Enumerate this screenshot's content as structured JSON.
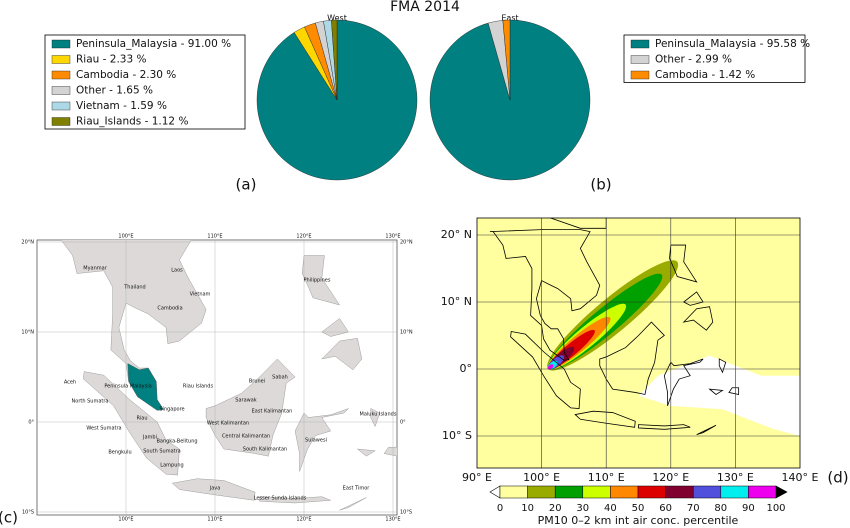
{
  "title": "FMA 2014",
  "chart_data": [
    {
      "type": "pie",
      "title": "West",
      "panel_label": "(a)",
      "legend": "left",
      "categories": [
        "Peninsula_Malaysia - 91.00 %",
        "Riau - 2.33 %",
        "Cambodia - 2.30 %",
        "Other - 1.65 %",
        "Vietnam - 1.59 %",
        "Riau_Islands - 1.12 %"
      ],
      "values": [
        91.0,
        2.33,
        2.3,
        1.65,
        1.59,
        1.12
      ],
      "colors": [
        "#008080",
        "#ffd700",
        "#ff8c00",
        "#d3d3d3",
        "#add8e6",
        "#808000"
      ]
    },
    {
      "type": "pie",
      "title": "East",
      "panel_label": "(b)",
      "legend": "right",
      "categories": [
        "Peninsula_Malaysia - 95.58 %",
        "Other - 2.99 %",
        "Cambodia - 1.42 %"
      ],
      "values": [
        95.58,
        2.99,
        1.42
      ],
      "colors": [
        "#008080",
        "#d3d3d3",
        "#ff8c00"
      ]
    }
  ],
  "map_c": {
    "panel_label": "(c)",
    "lon_labels": [
      "100°E",
      "110°E",
      "120°E",
      "130°E"
    ],
    "lat_labels": [
      "20°N",
      "10°N",
      "0°",
      "10°S"
    ],
    "place_labels": [
      "Myanmar",
      "Laos",
      "Thailand",
      "Vietnam",
      "Cambodia",
      "Philippines",
      "Peninsula Malaysia",
      "Riau Islands",
      "Brunei",
      "Sabah",
      "Sarawak",
      "East Kalimantan",
      "Aceh",
      "North Sumatra",
      "Riau",
      "Singapore",
      "West Sumatra",
      "Jambi",
      "Bangka-Belitung",
      "Bengkulu",
      "South Sumatra",
      "West Kalimantan",
      "Central Kalimantan",
      "South Kalimantan",
      "Lampung",
      "Sulawesi",
      "Maluku Islands",
      "Java",
      "Lesser Sunda Islands",
      "East Timor"
    ]
  },
  "map_d": {
    "panel_label": "(d)",
    "lat_labels": [
      "20° N",
      "10° N",
      "0°",
      "10° S"
    ],
    "lon_labels": [
      "90° E",
      "100° E",
      "110° E",
      "120° E",
      "130° E",
      "140° E"
    ],
    "colorbar": {
      "label": "PM10 0–2 km int air conc. percentile",
      "ticks": [
        "0",
        "10",
        "20",
        "30",
        "40",
        "50",
        "60",
        "70",
        "80",
        "90",
        "100"
      ],
      "colors": [
        "#ffffa0",
        "#9aab00",
        "#00a000",
        "#ccff00",
        "#ff8800",
        "#dd0000",
        "#800030",
        "#5050dd",
        "#00eeee",
        "#ee00ee"
      ]
    }
  }
}
